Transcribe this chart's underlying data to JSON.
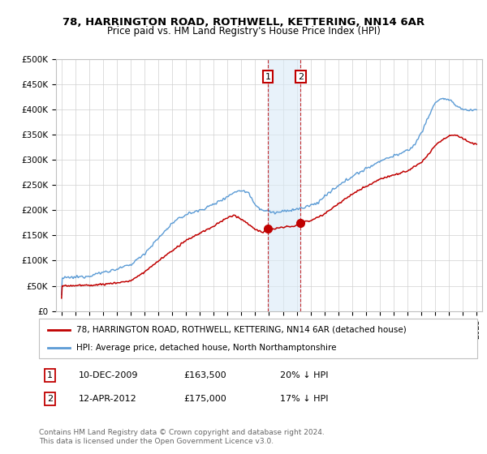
{
  "title": "78, HARRINGTON ROAD, ROTHWELL, KETTERING, NN14 6AR",
  "subtitle": "Price paid vs. HM Land Registry's House Price Index (HPI)",
  "legend_line1": "78, HARRINGTON ROAD, ROTHWELL, KETTERING, NN14 6AR (detached house)",
  "legend_line2": "HPI: Average price, detached house, North Northamptonshire",
  "footer": "Contains HM Land Registry data © Crown copyright and database right 2024.\nThis data is licensed under the Open Government Licence v3.0.",
  "transaction1_date": "10-DEC-2009",
  "transaction1_price": "£163,500",
  "transaction1_hpi": "20% ↓ HPI",
  "transaction1_year": 2009.92,
  "transaction1_value": 163500,
  "transaction2_date": "12-APR-2012",
  "transaction2_price": "£175,000",
  "transaction2_hpi": "17% ↓ HPI",
  "transaction2_year": 2012.28,
  "transaction2_value": 175000,
  "hpi_color": "#5b9bd5",
  "price_color": "#c00000",
  "highlight_color": "#daeaf7",
  "highlight_alpha": 0.6,
  "ylim": [
    0,
    500000
  ],
  "yticks": [
    0,
    50000,
    100000,
    150000,
    200000,
    250000,
    300000,
    350000,
    400000,
    450000,
    500000
  ],
  "ytick_labels": [
    "£0",
    "£50K",
    "£100K",
    "£150K",
    "£200K",
    "£250K",
    "£300K",
    "£350K",
    "£400K",
    "£450K",
    "£500K"
  ],
  "xmin": 1994.6,
  "xmax": 2025.4
}
